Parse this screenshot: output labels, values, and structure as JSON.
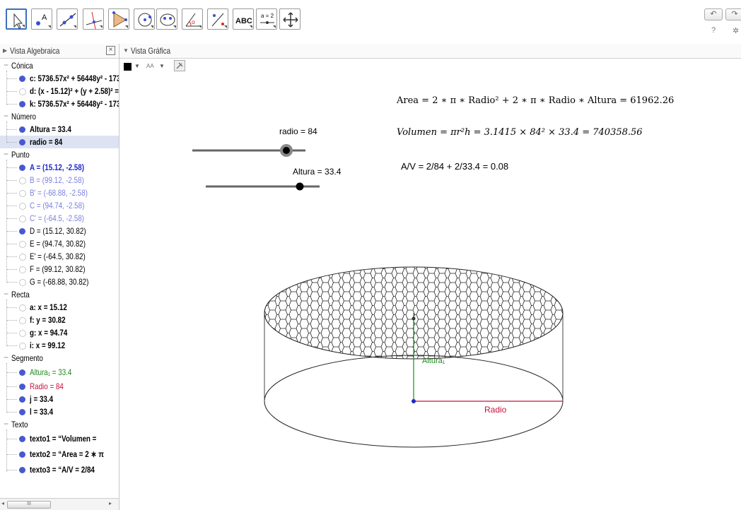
{
  "toolbar": {
    "tools": [
      {
        "name": "move-tool",
        "icon": "arrow-cursor-icon"
      },
      {
        "name": "point-tool",
        "icon": "point-A-icon",
        "label": "A"
      },
      {
        "name": "line-tool",
        "icon": "line-through-points-icon"
      },
      {
        "name": "perpendicular-tool",
        "icon": "perpendicular-line-icon"
      },
      {
        "name": "polygon-tool",
        "icon": "polygon-icon"
      },
      {
        "name": "circle-tool",
        "icon": "circle-center-point-icon"
      },
      {
        "name": "ellipse-tool",
        "icon": "ellipse-icon"
      },
      {
        "name": "angle-tool",
        "icon": "angle-icon",
        "label": "α"
      },
      {
        "name": "reflect-tool",
        "icon": "reflect-point-icon"
      },
      {
        "name": "text-tool",
        "icon": "text-icon",
        "label": "ABC"
      },
      {
        "name": "slider-tool",
        "icon": "slider-icon",
        "label": "a = 2"
      },
      {
        "name": "move-view-tool",
        "icon": "move-graphics-view-icon"
      }
    ],
    "help_label": "?"
  },
  "algebra": {
    "title": "Vista Algebraica",
    "rows": [
      {
        "kind": "cat",
        "text": "Cónica"
      },
      {
        "kind": "obj",
        "text": "c: 5736.57x² + 56448y² - 173",
        "shown": true,
        "cls": "bold"
      },
      {
        "kind": "obj",
        "text": "d: (x - 15.12)² + (y + 2.58)² =",
        "shown": false,
        "cls": "bold"
      },
      {
        "kind": "obj",
        "text": "k: 5736.57x² + 56448y² - 173",
        "shown": true,
        "cls": "bold"
      },
      {
        "kind": "cat",
        "text": "Número"
      },
      {
        "kind": "obj",
        "text": "Altura = 33.4",
        "shown": true,
        "cls": "bold"
      },
      {
        "kind": "obj",
        "text": "radio = 84",
        "shown": true,
        "cls": "bold",
        "selected": true
      },
      {
        "kind": "cat",
        "text": "Punto"
      },
      {
        "kind": "obj",
        "text": "A = (15.12, -2.58)",
        "shown": true,
        "cls": "bold blue"
      },
      {
        "kind": "obj",
        "text": "B = (99.12, -2.58)",
        "shown": false,
        "cls": "lightblue"
      },
      {
        "kind": "obj",
        "text": "B' = (-68.88, -2.58)",
        "shown": false,
        "cls": "lightblue"
      },
      {
        "kind": "obj",
        "text": "C = (94.74, -2.58)",
        "shown": false,
        "cls": "lightblue"
      },
      {
        "kind": "obj",
        "text": "C' = (-64.5, -2.58)",
        "shown": false,
        "cls": "lightblue"
      },
      {
        "kind": "obj",
        "text": "D = (15.12, 30.82)",
        "shown": true,
        "cls": ""
      },
      {
        "kind": "obj",
        "text": "E = (94.74, 30.82)",
        "shown": false,
        "cls": ""
      },
      {
        "kind": "obj",
        "text": "E' = (-64.5, 30.82)",
        "shown": false,
        "cls": ""
      },
      {
        "kind": "obj",
        "text": "F = (99.12, 30.82)",
        "shown": false,
        "cls": ""
      },
      {
        "kind": "obj",
        "text": "G = (-68.88, 30.82)",
        "shown": false,
        "cls": ""
      },
      {
        "kind": "cat",
        "text": "Recta"
      },
      {
        "kind": "obj",
        "text": "a: x = 15.12",
        "shown": false,
        "cls": "bold"
      },
      {
        "kind": "obj",
        "text": "f: y = 30.82",
        "shown": false,
        "cls": "bold"
      },
      {
        "kind": "obj",
        "text": "g: x = 94.74",
        "shown": false,
        "cls": "bold"
      },
      {
        "kind": "obj",
        "text": "i: x = 99.12",
        "shown": false,
        "cls": "bold"
      },
      {
        "kind": "cat",
        "text": "Segmento"
      },
      {
        "kind": "obj",
        "text": "Altura₁ = 33.4",
        "shown": true,
        "cls": "green",
        "tall": true
      },
      {
        "kind": "obj",
        "text": "Radio = 84",
        "shown": true,
        "cls": "red"
      },
      {
        "kind": "obj",
        "text": "j = 33.4",
        "shown": true,
        "cls": "bold"
      },
      {
        "kind": "obj",
        "text": "l = 33.4",
        "shown": true,
        "cls": "bold"
      },
      {
        "kind": "cat",
        "text": "Texto"
      },
      {
        "kind": "obj",
        "text": "texto1 = “Volumen = ",
        "shown": true,
        "cls": "bold",
        "tall": true
      },
      {
        "kind": "obj",
        "text": "texto2 = “Area = 2 ∗ π",
        "shown": true,
        "cls": "bold",
        "tall": true
      },
      {
        "kind": "obj",
        "text": "texto3 = “A/V = 2/84",
        "shown": true,
        "cls": "bold",
        "tall": true
      }
    ],
    "scroll_thumb_label": "III"
  },
  "graphics": {
    "title": "Vista Gráfica",
    "style_aa": "AA",
    "formula_area": "Area = 2 ∗ π ∗ Radio² + 2 ∗ π ∗ Radio ∗ Altura = 61962.26",
    "formula_volumen": "Volumen = πr²h = 3.1415 × 84² × 33.4 = 740358.56",
    "formula_av": "A/V = 2/84 + 2/33.4 = 0.08",
    "slider_radio_label": "radio = 84",
    "slider_altura_label": "Altura = 33.4",
    "label_radio": "Radio",
    "label_altura": "Altura₁",
    "colors": {
      "radio_segment": "#c8123c",
      "altura_segment": "#1b8a1b",
      "point": "#1f28c8"
    }
  }
}
